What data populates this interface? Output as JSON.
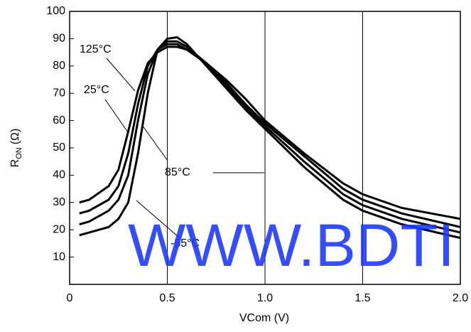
{
  "chart_data": {
    "type": "line",
    "xlabel": "VCom (V)",
    "ylabel": {
      "main": "R",
      "sub": "ON",
      "unit": "(Ω)"
    },
    "x": [
      0.05,
      0.1,
      0.2,
      0.25,
      0.3,
      0.35,
      0.4,
      0.45,
      0.5,
      0.55,
      0.6,
      0.7,
      0.8,
      0.9,
      1.0,
      1.2,
      1.4,
      1.5,
      1.7,
      2.0
    ],
    "series": [
      {
        "name": "-55°C",
        "color": "#000000",
        "values": [
          18,
          19,
          21,
          24,
          30,
          48,
          70,
          86,
          90,
          90.5,
          88,
          80,
          72,
          64,
          57,
          43,
          31,
          27,
          22,
          17
        ]
      },
      {
        "name": "25°C",
        "color": "#000000",
        "values": [
          22,
          23,
          27,
          31,
          40,
          60,
          77,
          86,
          89,
          89,
          87,
          81,
          73,
          65,
          58,
          45,
          33,
          29,
          24,
          19
        ]
      },
      {
        "name": "85°C",
        "color": "#000000",
        "values": [
          26,
          27,
          31,
          36,
          48,
          66,
          80,
          86,
          88,
          88,
          86,
          81,
          74,
          66,
          59,
          47,
          35,
          31,
          26,
          21
        ]
      },
      {
        "name": "125°C",
        "color": "#000000",
        "values": [
          30,
          31,
          36,
          42,
          56,
          71,
          81,
          85,
          87,
          87,
          86,
          81,
          75,
          68,
          60,
          48,
          37,
          33,
          28,
          24
        ]
      }
    ],
    "xlim": [
      0,
      2
    ],
    "xticks": [
      0,
      0.5,
      {
        "value": 1,
        "label": "1.0"
      },
      1.5,
      {
        "value": 2,
        "label": "2.0"
      }
    ],
    "ylim": [
      0,
      100
    ],
    "yticks": [
      10,
      20,
      30,
      40,
      50,
      60,
      70,
      80,
      90,
      100
    ],
    "grid": "x",
    "watermark": "WWW.BDTI"
  }
}
